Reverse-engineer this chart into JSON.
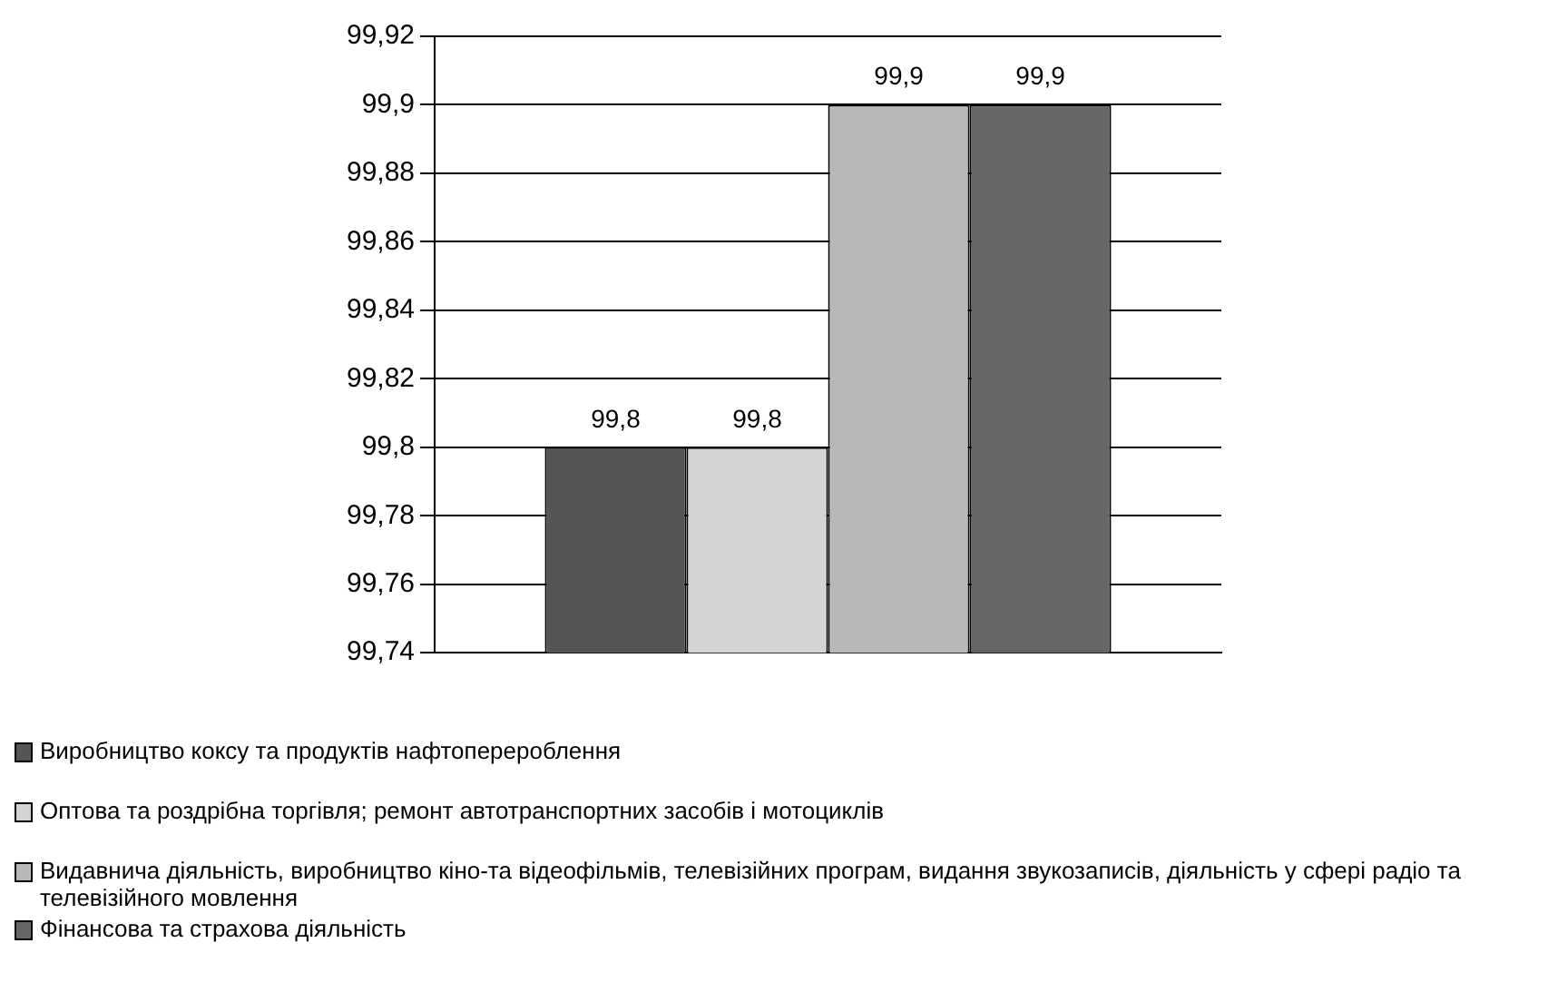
{
  "chart_data": {
    "type": "bar",
    "categories": [
      null
    ],
    "series": [
      {
        "name": "Виробництво коксу та продуктів нафтоперероблення",
        "color": "#555555",
        "values": [
          99.8
        ],
        "value_labels": [
          "99,8"
        ]
      },
      {
        "name": "Оптова та роздрібна торгівля; ремонт автотранспортних засобів і мотоциклів",
        "color": "#d4d4d4",
        "values": [
          99.8
        ],
        "value_labels": [
          "99,8"
        ]
      },
      {
        "name": "Видавнича діяльність, виробництво кіно-та відеофільмів, телевізійних програм, видання звукозаписів, діяльність у сфері радіо та телевізійного мовлення",
        "color": "#b8b8b8",
        "values": [
          99.9
        ],
        "value_labels": [
          "99,9"
        ]
      },
      {
        "name": "Фінансова та страхова діяльність",
        "color": "#666666",
        "values": [
          99.9
        ],
        "value_labels": [
          "99,9"
        ]
      }
    ],
    "ylim": [
      99.74,
      99.92
    ],
    "yticks": [
      {
        "value": 99.74,
        "label": "99,74"
      },
      {
        "value": 99.76,
        "label": "99,76"
      },
      {
        "value": 99.78,
        "label": "99,78"
      },
      {
        "value": 99.8,
        "label": "99,8"
      },
      {
        "value": 99.82,
        "label": "99,82"
      },
      {
        "value": 99.84,
        "label": "99,84"
      },
      {
        "value": 99.86,
        "label": "99,86"
      },
      {
        "value": 99.88,
        "label": "99,88"
      },
      {
        "value": 99.9,
        "label": "99,9"
      },
      {
        "value": 99.92,
        "label": "99,92"
      }
    ],
    "grid": "y",
    "legend": "bottom"
  }
}
